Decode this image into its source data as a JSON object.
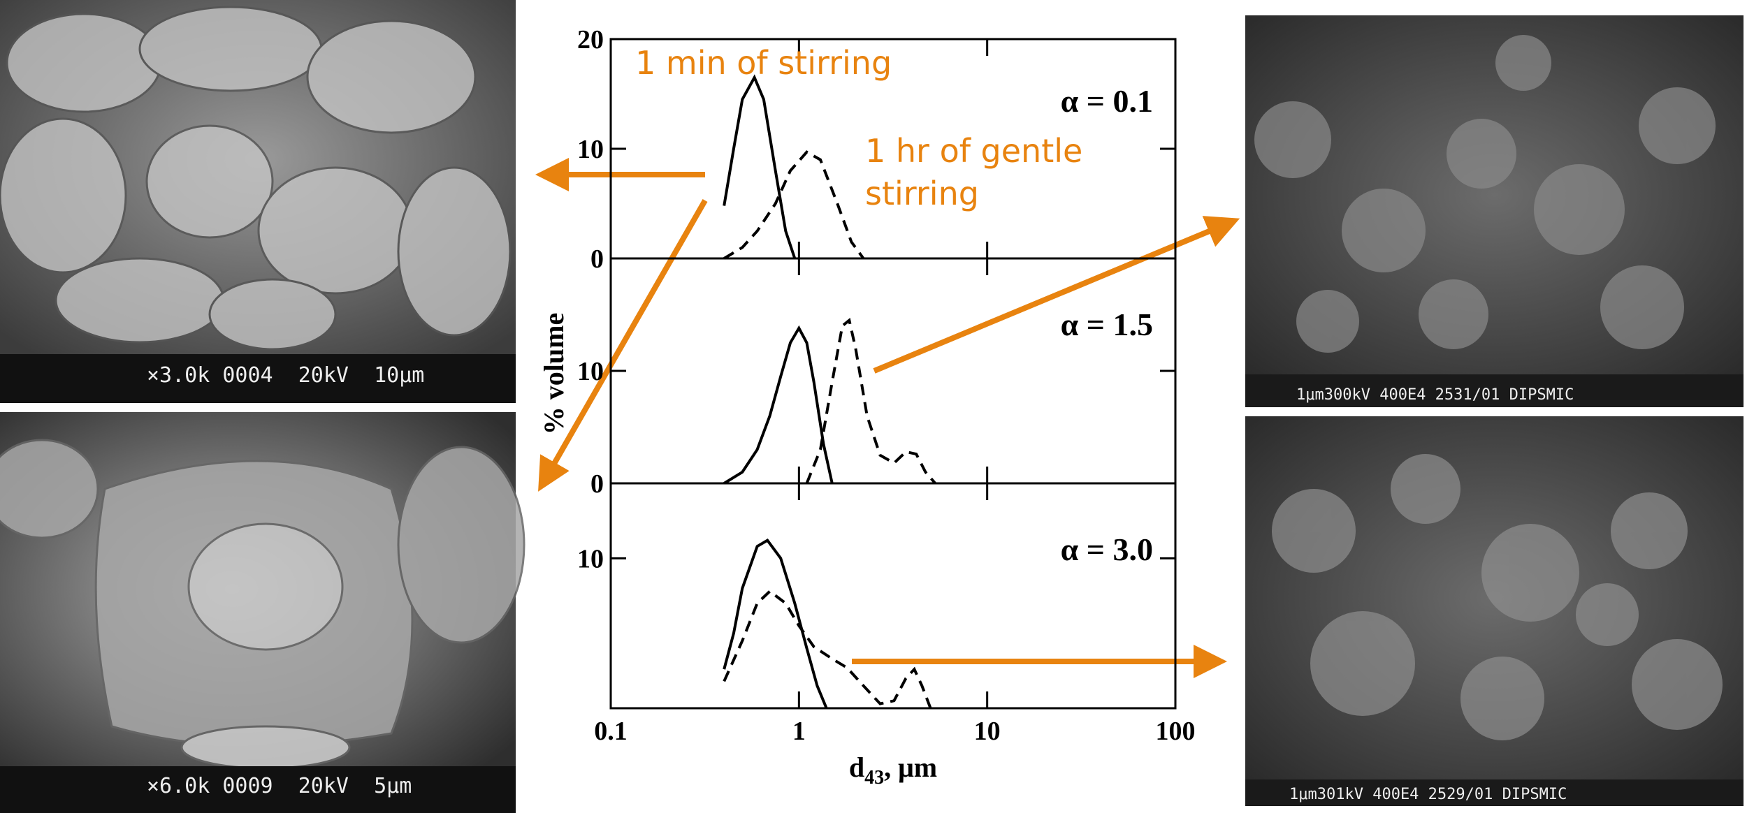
{
  "chart_data": [
    {
      "type": "line",
      "label": "α = 0.1",
      "xscale": "log",
      "xlim": [
        0.1,
        100
      ],
      "ylim": [
        0,
        20
      ],
      "yticks": [
        0,
        10,
        20
      ],
      "annotations": [
        "1 min of stirring",
        "1 hr of gentle",
        "stirring"
      ],
      "series": [
        {
          "color": "#000000",
          "style": "solid",
          "x": [
            0.4,
            0.45,
            0.5,
            0.58,
            0.65,
            0.75,
            0.85,
            0.95
          ],
          "values": [
            4.8,
            10,
            14.5,
            16.5,
            14.5,
            8,
            2.5,
            0
          ]
        },
        {
          "color": "#000000",
          "style": "dashed",
          "x": [
            0.4,
            0.5,
            0.6,
            0.75,
            0.9,
            1.1,
            1.3,
            1.6,
            1.9,
            2.2
          ],
          "values": [
            0,
            1,
            2.5,
            5,
            8,
            9.7,
            9,
            5,
            1.5,
            0
          ]
        }
      ]
    },
    {
      "type": "line",
      "label": "α = 1.5",
      "xscale": "log",
      "xlim": [
        0.1,
        100
      ],
      "ylim": [
        0,
        20
      ],
      "yticks": [
        0,
        10
      ],
      "series": [
        {
          "color": "#000000",
          "style": "solid",
          "x": [
            0.4,
            0.5,
            0.6,
            0.7,
            0.8,
            0.9,
            1.0,
            1.1,
            1.2,
            1.35,
            1.5
          ],
          "values": [
            0,
            1,
            3,
            6,
            9.5,
            12.5,
            13.8,
            12.5,
            9,
            3.5,
            0
          ]
        },
        {
          "color": "#000000",
          "style": "dashed",
          "x": [
            1.1,
            1.3,
            1.5,
            1.7,
            1.85,
            2.0,
            2.3,
            2.7,
            3.2,
            3.7,
            4.2,
            4.7,
            5.3
          ],
          "values": [
            0,
            3,
            9,
            14,
            14.5,
            12,
            6,
            2.5,
            1.8,
            2.8,
            2.6,
            1,
            0
          ]
        }
      ]
    },
    {
      "type": "line",
      "label": "α = 3.0",
      "xscale": "log",
      "xlim": [
        0.1,
        100
      ],
      "ylim": [
        0,
        15
      ],
      "yticks": [
        10
      ],
      "xticks": [
        0.1,
        1,
        10,
        100
      ],
      "y_label": "% volume",
      "x_label": [
        "d",
        "43",
        ", μm"
      ],
      "series": [
        {
          "color": "#000000",
          "style": "solid",
          "x": [
            0.4,
            0.45,
            0.5,
            0.6,
            0.68,
            0.8,
            0.95,
            1.1,
            1.25,
            1.4
          ],
          "values": [
            2.6,
            5,
            8,
            10.8,
            11.2,
            10,
            7,
            4,
            1.5,
            0
          ]
        },
        {
          "color": "#000000",
          "style": "dashed",
          "x": [
            0.4,
            0.5,
            0.6,
            0.7,
            0.85,
            1.0,
            1.2,
            1.5,
            1.8,
            2.2,
            2.7,
            3.2,
            3.7,
            4.1,
            4.5,
            5.0
          ],
          "values": [
            1.8,
            4.5,
            7,
            7.8,
            7,
            5.5,
            4.1,
            3.3,
            2.7,
            1.5,
            0.3,
            0.5,
            2,
            2.6,
            1.5,
            0
          ]
        }
      ]
    }
  ],
  "images": [
    {
      "caption": "×3.0k 0004  20kV  10μm"
    },
    {
      "caption": "×6.0k 0009  20kV  5μm"
    },
    {
      "caption": "1μm300kV 400E4 2531/01 DIPSMIC"
    },
    {
      "caption": "1μm301kV 400E4 2529/01 DIPSMIC"
    }
  ]
}
